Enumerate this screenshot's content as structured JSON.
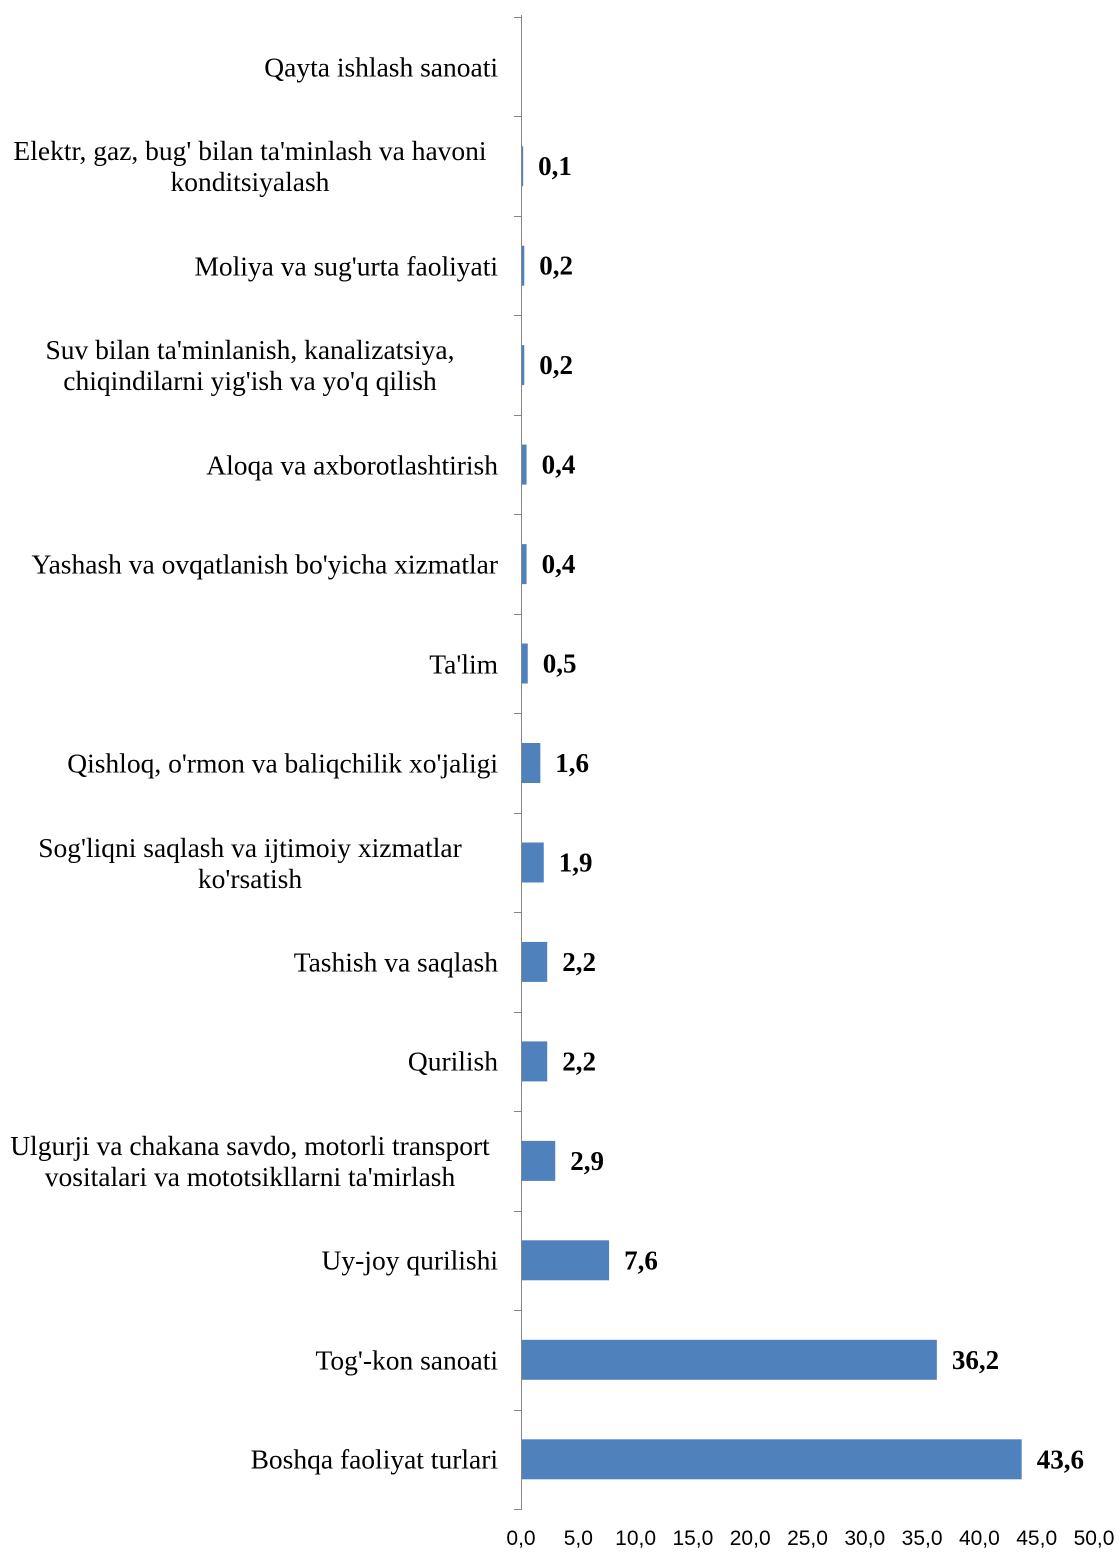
{
  "chart_data": {
    "type": "bar",
    "orientation": "horizontal",
    "categories": [
      "Qayta ishlash sanoati",
      "Elektr, gaz, bug' bilan ta'minlash va havoni konditsiyalash",
      "Moliya va sug'urta faoliyati",
      "Suv bilan ta'minlanish, kanalizatsiya, chiqindilarni yig'ish va yo'q qilish",
      "Aloqa va axborotlashtirish",
      "Yashash va ovqatlanish bo'yicha xizmatlar",
      "Ta'lim",
      "Qishloq, o'rmon va baliqchilik xo'jaligi",
      "Sog'liqni saqlash va ijtimoiy xizmatlar ko'rsatish",
      "Tashish va saqlash",
      "Qurilish",
      "Ulgurji va chakana savdo, motorli transport vositalari va mototsikllarni ta'mirlash",
      "Uy-joy qurilishi",
      "Tog'-kon sanoati",
      "Boshqa faoliyat turlari"
    ],
    "values": [
      null,
      0.1,
      0.2,
      0.2,
      0.4,
      0.4,
      0.5,
      1.6,
      1.9,
      2.2,
      2.2,
      2.9,
      7.6,
      36.2,
      43.6
    ],
    "data_labels": [
      null,
      "0,1",
      "0,2",
      "0,2",
      "0,4",
      "0,4",
      "0,5",
      "1,6",
      "1,9",
      "2,2",
      "2,2",
      "2,9",
      "7,6",
      "36,2",
      "43,6"
    ],
    "xlim": [
      0,
      50
    ],
    "xticks": [
      0,
      5,
      10,
      15,
      20,
      25,
      30,
      35,
      40,
      45,
      50
    ],
    "xtick_labels": [
      "0,0",
      "5,0",
      "10,0",
      "15,0",
      "20,0",
      "25,0",
      "30,0",
      "35,0",
      "40,0",
      "45,0",
      "50,0"
    ],
    "grid": false,
    "bar_color": "#4F81BD",
    "axis_color": "#868686"
  }
}
